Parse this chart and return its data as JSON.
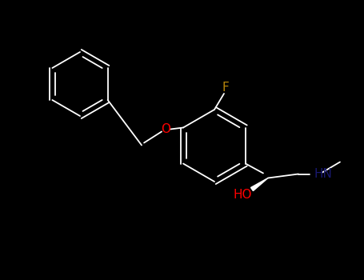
{
  "background_color": "#000000",
  "bond_color": "#ffffff",
  "atom_colors": {
    "O": "#ff0000",
    "F": "#b8860b",
    "N": "#191970",
    "C": "#ffffff",
    "H": "#ffffff"
  },
  "lw": 1.3,
  "fontsize": 11
}
